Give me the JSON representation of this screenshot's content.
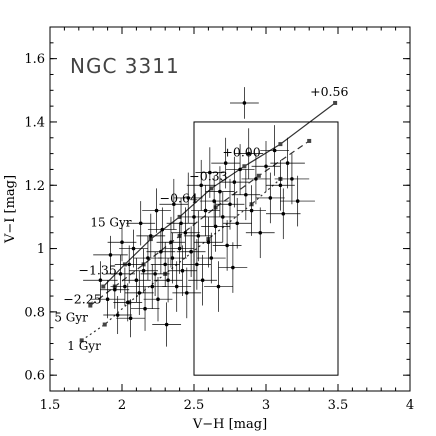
{
  "chart_data": {
    "type": "scatter",
    "title": "NGC 3311",
    "xlabel": "V−H [mag]",
    "ylabel": "V−I [mag]",
    "xlim": [
      1.5,
      4.0
    ],
    "ylim": [
      0.55,
      1.7
    ],
    "x_ticks": [
      "1.5",
      "2",
      "2.5",
      "3",
      "3.5",
      "4"
    ],
    "x_tick_values": [
      1.5,
      2.0,
      2.5,
      3.0,
      3.5,
      4.0
    ],
    "y_ticks": [
      "0.6",
      "0.8",
      "1",
      "1.2",
      "1.4",
      "1.6"
    ],
    "y_tick_values": [
      0.6,
      0.8,
      1.0,
      1.2,
      1.4,
      1.6
    ],
    "grid": false,
    "selection_box": {
      "x": [
        2.5,
        3.5
      ],
      "y": [
        0.6,
        1.4
      ]
    },
    "model_tracks": [
      {
        "label": "15 Gyr",
        "style": "solid",
        "points": [
          [
            1.87,
            0.88
          ],
          [
            2.02,
            0.95
          ],
          [
            2.2,
            1.03
          ],
          [
            2.4,
            1.1
          ],
          [
            2.62,
            1.19
          ],
          [
            2.85,
            1.26
          ],
          [
            3.1,
            1.33
          ],
          [
            3.48,
            1.46
          ]
        ],
        "metallicity_labels": [
          {
            "text": "−1.35",
            "x": 1.92,
            "y": 0.88
          },
          {
            "text": "−0.64",
            "x": 2.4,
            "y": 1.11
          },
          {
            "text": "−0.33",
            "x": 2.62,
            "y": 1.19
          },
          {
            "text": "+0.00",
            "x": 2.85,
            "y": 1.26
          },
          {
            "text": "+0.56",
            "x": 3.48,
            "y": 1.46
          }
        ]
      },
      {
        "label": "5 Gyr",
        "style": "dashed",
        "points": [
          [
            1.78,
            0.82
          ],
          [
            1.95,
            0.88
          ],
          [
            2.15,
            0.95
          ],
          [
            2.4,
            1.04
          ],
          [
            2.65,
            1.13
          ],
          [
            2.95,
            1.23
          ],
          [
            3.3,
            1.34
          ]
        ],
        "metallicity_labels": [
          {
            "text": "−2.25",
            "x": 1.78,
            "y": 0.82
          }
        ]
      },
      {
        "label": "1 Gyr",
        "style": "dotted",
        "points": [
          [
            1.72,
            0.71
          ],
          [
            1.88,
            0.76
          ],
          [
            2.05,
            0.83
          ],
          [
            2.3,
            0.92
          ],
          [
            2.6,
            1.03
          ],
          [
            2.9,
            1.14
          ],
          [
            3.1,
            1.22
          ]
        ]
      }
    ],
    "series": [
      {
        "points": [
          [
            1.85,
            0.9,
            0.12,
            0.06
          ],
          [
            1.9,
            0.84,
            0.12,
            0.06
          ],
          [
            1.92,
            0.98,
            0.12,
            0.06
          ],
          [
            1.95,
            0.87,
            0.1,
            0.06
          ],
          [
            1.97,
            0.79,
            0.1,
            0.06
          ],
          [
            1.99,
            0.92,
            0.1,
            0.06
          ],
          [
            2.0,
            1.02,
            0.1,
            0.06
          ],
          [
            2.02,
            0.88,
            0.1,
            0.06
          ],
          [
            2.04,
            0.83,
            0.1,
            0.06
          ],
          [
            2.05,
            0.95,
            0.1,
            0.06
          ],
          [
            2.06,
            0.78,
            0.1,
            0.06
          ],
          [
            2.08,
            1.0,
            0.1,
            0.06
          ],
          [
            2.1,
            0.9,
            0.1,
            0.07
          ],
          [
            2.12,
            0.86,
            0.1,
            0.07
          ],
          [
            2.13,
            1.08,
            0.1,
            0.07
          ],
          [
            2.15,
            0.93,
            0.1,
            0.07
          ],
          [
            2.16,
            0.81,
            0.1,
            0.07
          ],
          [
            2.18,
            0.97,
            0.1,
            0.07
          ],
          [
            2.2,
            1.04,
            0.1,
            0.07
          ],
          [
            2.21,
            0.88,
            0.1,
            0.07
          ],
          [
            2.23,
            0.92,
            0.1,
            0.07
          ],
          [
            2.24,
            1.12,
            0.1,
            0.07
          ],
          [
            2.25,
            0.84,
            0.1,
            0.07
          ],
          [
            2.27,
            0.99,
            0.1,
            0.07
          ],
          [
            2.28,
            1.06,
            0.1,
            0.07
          ],
          [
            2.3,
            0.95,
            0.1,
            0.07
          ],
          [
            2.31,
            0.76,
            0.1,
            0.07
          ],
          [
            2.32,
            0.9,
            0.1,
            0.07
          ],
          [
            2.34,
            1.02,
            0.1,
            0.08
          ],
          [
            2.35,
            0.97,
            0.1,
            0.08
          ],
          [
            2.36,
            1.14,
            0.1,
            0.08
          ],
          [
            2.38,
            0.88,
            0.1,
            0.08
          ],
          [
            2.4,
            1.0,
            0.1,
            0.08
          ],
          [
            2.41,
            1.08,
            0.1,
            0.08
          ],
          [
            2.42,
            0.93,
            0.1,
            0.08
          ],
          [
            2.44,
            1.05,
            0.1,
            0.08
          ],
          [
            2.45,
            0.86,
            0.1,
            0.08
          ],
          [
            2.46,
            1.16,
            0.1,
            0.08
          ],
          [
            2.48,
            0.99,
            0.1,
            0.08
          ],
          [
            2.5,
            1.1,
            0.1,
            0.08
          ],
          [
            2.52,
            0.95,
            0.1,
            0.08
          ],
          [
            2.53,
            1.04,
            0.1,
            0.08
          ],
          [
            2.55,
            1.2,
            0.1,
            0.08
          ],
          [
            2.56,
            0.9,
            0.1,
            0.08
          ],
          [
            2.58,
            1.12,
            0.1,
            0.08
          ],
          [
            2.6,
            1.02,
            0.1,
            0.08
          ],
          [
            2.61,
            1.24,
            0.1,
            0.08
          ],
          [
            2.62,
            0.97,
            0.1,
            0.08
          ],
          [
            2.64,
            1.15,
            0.1,
            0.08
          ],
          [
            2.65,
            1.07,
            0.1,
            0.08
          ],
          [
            2.67,
            0.88,
            0.1,
            0.08
          ],
          [
            2.68,
            1.18,
            0.1,
            0.08
          ],
          [
            2.7,
            1.1,
            0.1,
            0.08
          ],
          [
            2.72,
            1.27,
            0.1,
            0.08
          ],
          [
            2.73,
            1.01,
            0.1,
            0.08
          ],
          [
            2.75,
            1.14,
            0.1,
            0.08
          ],
          [
            2.77,
            0.94,
            0.1,
            0.08
          ],
          [
            2.78,
            1.21,
            0.1,
            0.08
          ],
          [
            2.8,
            1.08,
            0.1,
            0.08
          ],
          [
            2.82,
            1.25,
            0.1,
            0.08
          ],
          [
            2.85,
            1.46,
            0.1,
            0.05
          ],
          [
            2.86,
            1.17,
            0.1,
            0.08
          ],
          [
            2.88,
            1.3,
            0.1,
            0.08
          ],
          [
            2.9,
            1.12,
            0.1,
            0.08
          ],
          [
            2.93,
            1.22,
            0.1,
            0.08
          ],
          [
            2.96,
            1.05,
            0.1,
            0.08
          ],
          [
            3.0,
            1.26,
            0.1,
            0.08
          ],
          [
            3.03,
            1.16,
            0.1,
            0.08
          ],
          [
            3.06,
            1.31,
            0.1,
            0.08
          ],
          [
            3.1,
            1.2,
            0.1,
            0.08
          ],
          [
            3.12,
            1.11,
            0.12,
            0.08
          ],
          [
            3.15,
            1.27,
            0.12,
            0.08
          ],
          [
            3.18,
            1.22,
            0.12,
            0.08
          ],
          [
            3.22,
            1.15,
            0.12,
            0.08
          ]
        ]
      }
    ],
    "annotations": [
      {
        "text": "15 Gyr",
        "x": 1.78,
        "y": 1.07
      },
      {
        "text": "5 Gyr",
        "x": 1.53,
        "y": 0.77
      },
      {
        "text": "1 Gyr",
        "x": 1.62,
        "y": 0.68
      }
    ]
  }
}
